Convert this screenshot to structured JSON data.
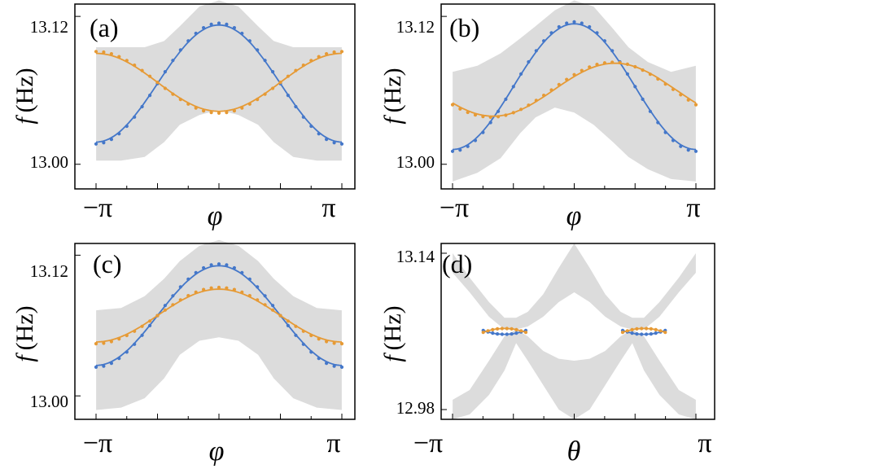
{
  "chart_data": [
    {
      "panel": "(a)",
      "type": "line",
      "xlabel": "φ",
      "ylabel_var": "f",
      "ylabel_unit": "(Hz)",
      "xlim": [
        -3.14159,
        3.14159
      ],
      "ylim": [
        12.98,
        13.13
      ],
      "y_ticks": [
        13.0,
        13.12
      ],
      "y_tick_labels": [
        "13.00",
        "13.12"
      ],
      "x_tick_labels": [
        "−π",
        "π"
      ],
      "band": {
        "x": [
          -3.14,
          -2.5,
          -1.9,
          -1.4,
          -1.0,
          -0.5,
          0,
          0.5,
          1.0,
          1.4,
          1.9,
          2.5,
          3.14
        ],
        "upper": [
          13.095,
          13.095,
          13.095,
          13.1,
          13.112,
          13.128,
          13.133,
          13.128,
          13.112,
          13.1,
          13.095,
          13.095,
          13.095
        ],
        "lower": [
          13.003,
          13.003,
          13.006,
          13.018,
          13.032,
          13.04,
          13.044,
          13.04,
          13.032,
          13.018,
          13.006,
          13.003,
          13.003
        ]
      },
      "series": [
        {
          "name": "blue",
          "color": "#4477c9",
          "model": "cos",
          "center": 13.0655,
          "amplitude": 0.0475,
          "phase": 0
        },
        {
          "name": "orange",
          "color": "#e69a35",
          "model": "cos",
          "center": 13.0665,
          "amplitude": -0.0235,
          "phase": 0
        }
      ]
    },
    {
      "panel": "(b)",
      "type": "line",
      "xlabel": "φ",
      "ylabel_var": "f",
      "ylabel_unit": "(Hz)",
      "xlim": [
        -3.14159,
        3.14159
      ],
      "ylim": [
        12.98,
        13.13
      ],
      "y_ticks": [
        13.0,
        13.12
      ],
      "y_tick_labels": [
        "13.00",
        "13.12"
      ],
      "x_tick_labels": [
        "−π",
        "π"
      ],
      "band": {
        "x": [
          -3.14,
          -2.5,
          -1.9,
          -1.4,
          -1.0,
          -0.5,
          0,
          0.5,
          1.0,
          1.4,
          1.9,
          2.5,
          3.14
        ],
        "upper": [
          13.075,
          13.08,
          13.09,
          13.102,
          13.112,
          13.125,
          13.133,
          13.128,
          13.11,
          13.095,
          13.083,
          13.075,
          13.08
        ],
        "lower": [
          12.986,
          12.993,
          13.005,
          13.025,
          13.038,
          13.046,
          13.042,
          13.032,
          13.018,
          13.006,
          12.996,
          12.988,
          12.986
        ]
      },
      "series": [
        {
          "name": "blue",
          "color": "#4477c9",
          "model": "cos",
          "center": 13.063,
          "amplitude": 0.051,
          "phase": 0
        },
        {
          "name": "orange",
          "color": "#e69a35",
          "model": "cos",
          "center": 13.0605,
          "amplitude": 0.0215,
          "phase": -1.05
        }
      ]
    },
    {
      "panel": "(c)",
      "type": "line",
      "xlabel": "φ",
      "ylabel_var": "f",
      "ylabel_unit": "(Hz)",
      "xlim": [
        -3.14159,
        3.14159
      ],
      "ylim": [
        12.98,
        13.13
      ],
      "y_ticks": [
        13.0,
        13.12
      ],
      "y_tick_labels": [
        "13.00",
        "13.12"
      ],
      "x_tick_labels": [
        "−π",
        "π"
      ],
      "band": {
        "x": [
          -3.14,
          -2.5,
          -1.9,
          -1.4,
          -1.0,
          -0.5,
          0,
          0.5,
          1.0,
          1.4,
          1.9,
          2.5,
          3.14
        ],
        "upper": [
          13.073,
          13.075,
          13.085,
          13.1,
          13.115,
          13.128,
          13.133,
          13.128,
          13.115,
          13.1,
          13.085,
          13.075,
          13.073
        ],
        "lower": [
          12.988,
          12.99,
          12.998,
          13.015,
          13.035,
          13.047,
          13.05,
          13.047,
          13.035,
          13.015,
          12.998,
          12.99,
          12.988
        ]
      },
      "series": [
        {
          "name": "blue",
          "color": "#4477c9",
          "model": "cos",
          "center": 13.0685,
          "amplitude": 0.0425,
          "phase": 0
        },
        {
          "name": "orange",
          "color": "#e69a35",
          "model": "cos",
          "center": 13.0685,
          "amplitude": 0.0225,
          "phase": 0
        }
      ]
    },
    {
      "panel": "(d)",
      "type": "line",
      "xlabel": "θ",
      "ylabel_var": "f",
      "ylabel_unit": "(Hz)",
      "xlim": [
        -3.14159,
        3.14159
      ],
      "ylim": [
        12.97,
        13.15
      ],
      "y_ticks": [
        12.98,
        13.14
      ],
      "y_tick_labels": [
        "12.98",
        "13.14"
      ],
      "x_tick_labels": [
        "−π",
        "π"
      ],
      "bands": [
        {
          "x": [
            -3.14,
            -2.7,
            -2.2,
            -1.8,
            -1.5,
            -1.2,
            -0.8,
            -0.4,
            0,
            0.4,
            0.8,
            1.2,
            1.5,
            1.8,
            2.2,
            2.7,
            3.14
          ],
          "upper": [
            13.14,
            13.115,
            13.09,
            13.074,
            13.074,
            13.08,
            13.098,
            13.125,
            13.15,
            13.125,
            13.098,
            13.08,
            13.074,
            13.074,
            13.09,
            13.115,
            13.14
          ],
          "lower": [
            13.12,
            13.1,
            13.075,
            13.062,
            13.062,
            13.065,
            13.075,
            13.09,
            13.1,
            13.09,
            13.075,
            13.065,
            13.062,
            13.062,
            13.075,
            13.1,
            13.12
          ]
        },
        {
          "x": [
            -3.14,
            -2.7,
            -2.2,
            -1.8,
            -1.5,
            -1.2,
            -0.8,
            -0.4,
            0,
            0.4,
            0.8,
            1.2,
            1.5,
            1.8,
            2.2,
            2.7,
            3.14
          ],
          "upper": [
            12.99,
            13.0,
            13.03,
            13.055,
            13.062,
            13.055,
            13.04,
            13.032,
            13.03,
            13.032,
            13.04,
            13.055,
            13.062,
            13.055,
            13.03,
            13.0,
            12.99
          ],
          "lower": [
            12.97,
            12.975,
            12.995,
            13.02,
            13.048,
            13.03,
            13.005,
            12.98,
            12.97,
            12.98,
            13.005,
            13.03,
            13.048,
            13.02,
            12.995,
            12.975,
            12.97
          ]
        }
      ],
      "series": [
        {
          "name": "blue",
          "color": "#4477c9",
          "segments": [
            [
              -2.35,
              -1.25
            ],
            [
              1.25,
              2.35
            ]
          ],
          "model": "bowl",
          "center": 13.059,
          "amplitude": -0.004
        },
        {
          "name": "orange",
          "color": "#e69a35",
          "segments": [
            [
              -2.35,
              -1.25
            ],
            [
              1.25,
              2.35
            ]
          ],
          "model": "bowl",
          "center": 13.061,
          "amplitude": 0.004
        }
      ]
    }
  ]
}
